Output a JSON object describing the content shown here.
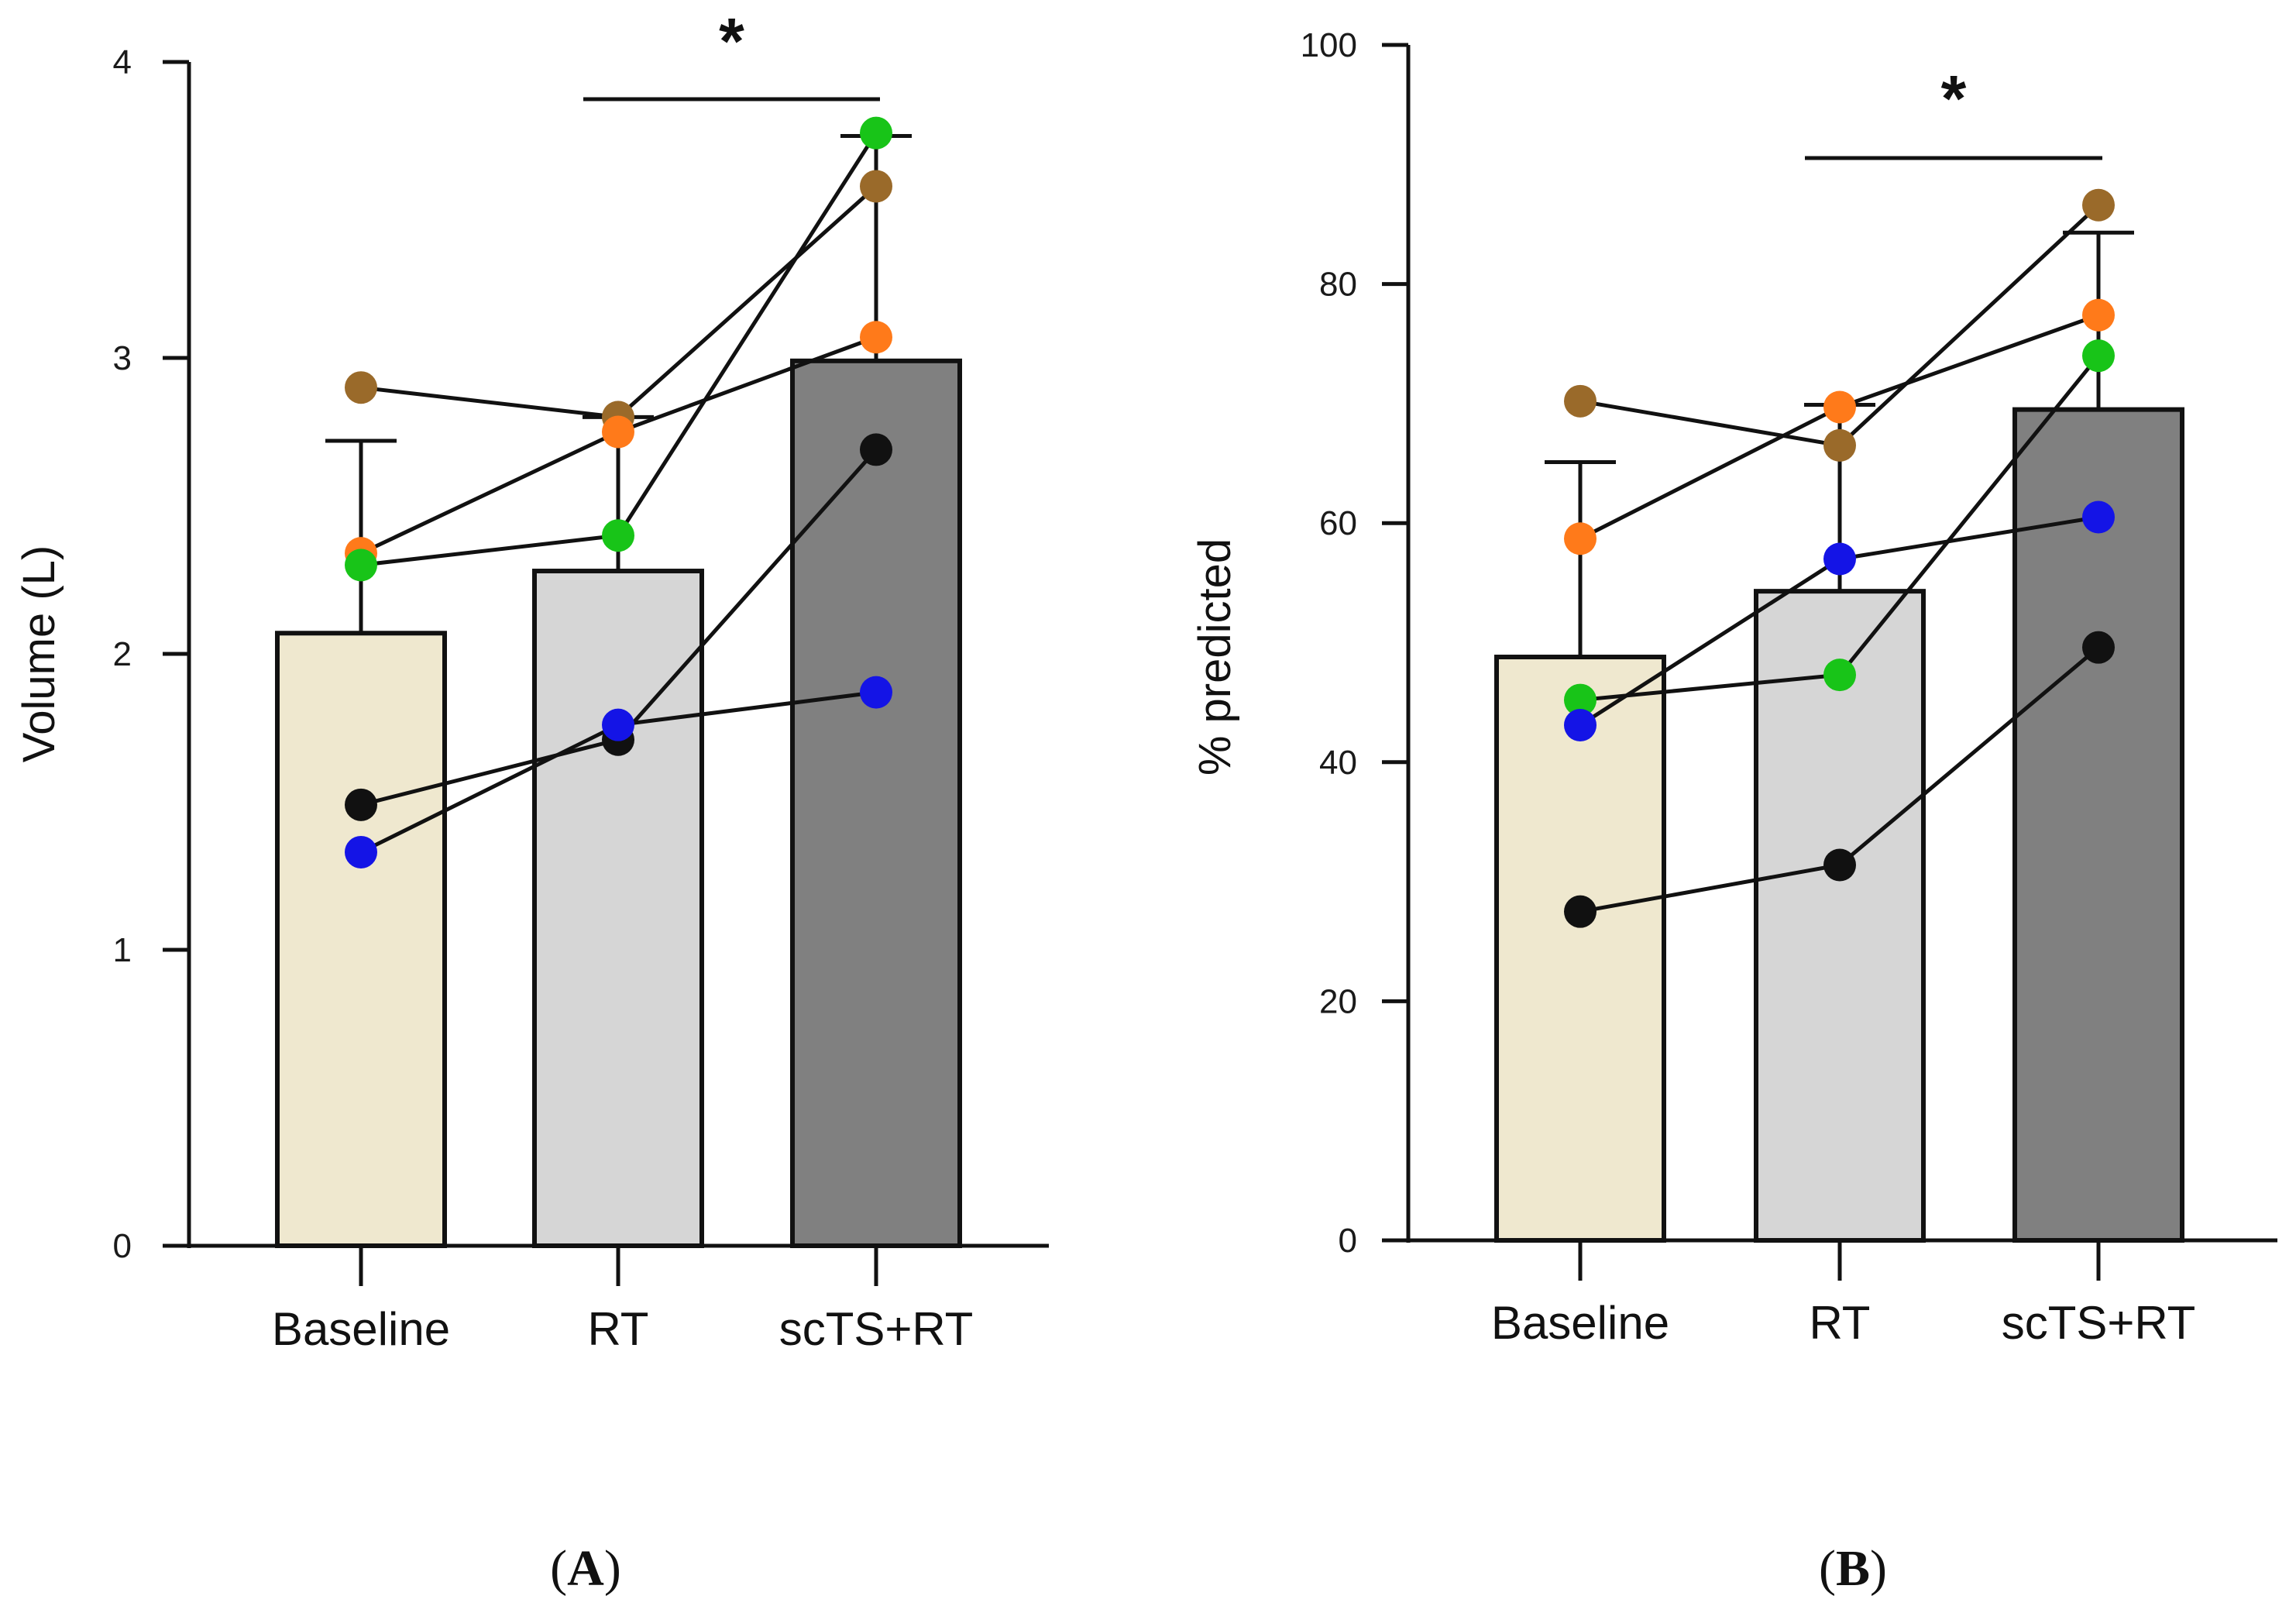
{
  "chart_data": [
    {
      "type": "bar",
      "panel": "A",
      "categories": [
        "Baseline",
        "RT",
        "scTS+RT"
      ],
      "values": [
        2.07,
        2.28,
        2.99
      ],
      "sd": [
        0.65,
        0.52,
        0.76
      ],
      "bar_colors": [
        "#efe8cf",
        "#d6d6d6",
        "#808080"
      ],
      "ylabel": "Volume (L)",
      "ylim": [
        0,
        4
      ],
      "yticks": [
        0,
        1,
        2,
        3,
        4
      ],
      "grid": false,
      "subjects": [
        {
          "color": "#9a6a2a",
          "values": [
            2.9,
            2.8,
            3.58
          ]
        },
        {
          "color": "#ff7a1a",
          "values": [
            2.34,
            2.75,
            3.07
          ]
        },
        {
          "color": "#18c418",
          "values": [
            2.3,
            2.4,
            3.76
          ]
        },
        {
          "color": "#111111",
          "values": [
            1.49,
            1.71,
            2.69
          ]
        },
        {
          "color": "#1414e6",
          "values": [
            1.33,
            1.76,
            1.87
          ]
        }
      ],
      "significance": {
        "from": "RT",
        "to": "scTS+RT",
        "label": "*"
      }
    },
    {
      "type": "bar",
      "panel": "B",
      "categories": [
        "Baseline",
        "RT",
        "scTS+RT"
      ],
      "values": [
        48.8,
        54.3,
        69.5
      ],
      "sd": [
        16.3,
        15.6,
        14.8
      ],
      "bar_colors": [
        "#efe8cf",
        "#d6d6d6",
        "#808080"
      ],
      "ylabel": "% predicted",
      "ylim": [
        0,
        100
      ],
      "yticks": [
        0,
        20,
        40,
        60,
        80,
        100
      ],
      "grid": false,
      "subjects": [
        {
          "color": "#9a6a2a",
          "values": [
            70.2,
            66.5,
            86.6
          ]
        },
        {
          "color": "#ff7a1a",
          "values": [
            58.7,
            69.7,
            77.4
          ]
        },
        {
          "color": "#18c418",
          "values": [
            45.2,
            47.3,
            74.0
          ]
        },
        {
          "color": "#1414e6",
          "values": [
            43.1,
            57.0,
            60.5
          ]
        },
        {
          "color": "#111111",
          "values": [
            27.5,
            31.4,
            49.6
          ]
        }
      ],
      "significance": {
        "from": "RT",
        "to": "scTS+RT",
        "label": "*"
      }
    }
  ],
  "panel_labels": [
    {
      "open": "(",
      "letter": "A",
      "close": ")"
    },
    {
      "open": "(",
      "letter": "B",
      "close": ")"
    }
  ]
}
